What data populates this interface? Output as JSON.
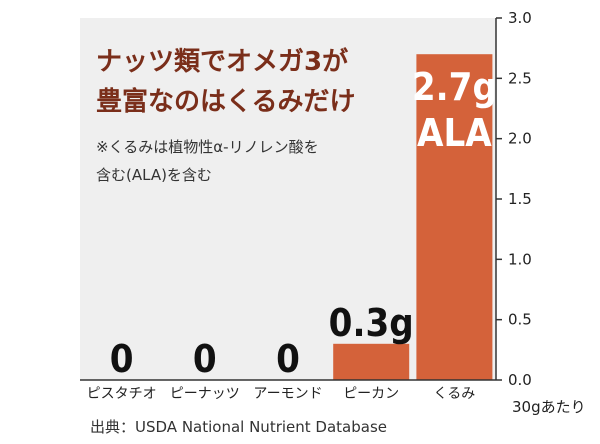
{
  "chart_data": {
    "type": "bar",
    "title_lines": [
      "ナッツ類でオメガ3が",
      "豊富なのはくるみだけ"
    ],
    "note_lines": [
      "※くるみは植物性α-リノレン酸を",
      "含む(ALA)を含む"
    ],
    "categories": [
      "ピスタチオ",
      "ピーナッツ",
      "アーモンド",
      "ピーカン",
      "くるみ"
    ],
    "values": [
      0,
      0,
      0,
      0.3,
      2.7
    ],
    "data_labels": [
      "0",
      "0",
      "0",
      "0.3g",
      "2.7g"
    ],
    "data_label_extra": [
      "",
      "",
      "",
      "",
      "ALA"
    ],
    "yticks": [
      "3.0",
      "2.5",
      "2.0",
      "1.5",
      "1.0",
      "0.5",
      "0.0"
    ],
    "ylim": [
      0,
      3.0
    ],
    "unit_label": "30gあたり",
    "source": "出典：USDA National Nutrient Database",
    "grid": false,
    "axis_side": "right"
  },
  "colors": {
    "plot_bg": "#efefef",
    "bar": "#d4623a",
    "title": "#7a2e1a",
    "label_dark": "#111111",
    "label_light": "#ffffff"
  }
}
